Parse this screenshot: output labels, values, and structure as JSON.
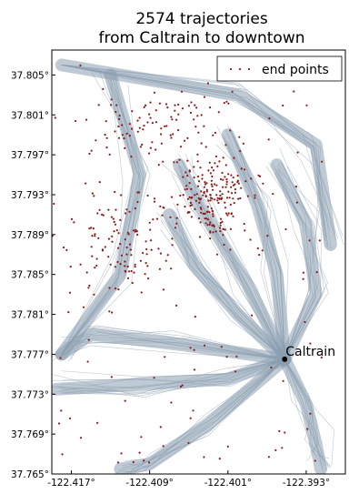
{
  "chart_data": {
    "type": "scatter",
    "title_lines": [
      "2574 trajectories",
      "from Caltrain to downtown"
    ],
    "xlabel": "",
    "ylabel": "",
    "xlim": [
      -122.419,
      -122.389
    ],
    "ylim": [
      37.765,
      37.8075
    ],
    "x_ticks": [
      -122.417,
      -122.409,
      -122.401,
      -122.393
    ],
    "x_tick_labels": [
      "-122.417°",
      "-122.409°",
      "-122.401°",
      "-122.393°"
    ],
    "y_ticks": [
      37.765,
      37.769,
      37.773,
      37.777,
      37.781,
      37.785,
      37.789,
      37.793,
      37.797,
      37.801,
      37.805
    ],
    "y_tick_labels": [
      "37.765°",
      "37.769°",
      "37.773°",
      "37.777°",
      "37.781°",
      "37.785°",
      "37.789°",
      "37.793°",
      "37.797°",
      "37.801°",
      "37.805°"
    ],
    "grid": false,
    "legend": {
      "position": "top-right",
      "entries": [
        {
          "label": "end points",
          "marker": "dot",
          "color": "#8b1a1a"
        }
      ]
    },
    "colors": {
      "trajectory": "#8a9eb0",
      "end_point": "#8b1a1a",
      "caltrain": "#000000"
    },
    "annotations": [
      {
        "text": "Caltrain",
        "x": -122.3952,
        "y": 37.7765
      }
    ],
    "end_points_shown": 2574,
    "trajectory_corridors": [
      [
        [
          -122.3952,
          37.7765
        ],
        [
          -122.4,
          37.781
        ],
        [
          -122.4045,
          37.786
        ],
        [
          -122.407,
          37.791
        ]
      ],
      [
        [
          -122.3952,
          37.7765
        ],
        [
          -122.399,
          37.784
        ],
        [
          -122.404,
          37.792
        ],
        [
          -122.406,
          37.796
        ]
      ],
      [
        [
          -122.3952,
          37.7765
        ],
        [
          -122.406,
          37.778
        ],
        [
          -122.415,
          37.779
        ],
        [
          -122.418,
          37.777
        ]
      ],
      [
        [
          -122.3952,
          37.7765
        ],
        [
          -122.401,
          37.7745
        ],
        [
          -122.41,
          37.774
        ],
        [
          -122.4185,
          37.7735
        ]
      ],
      [
        [
          -122.3952,
          37.7765
        ],
        [
          -122.396,
          37.785
        ],
        [
          -122.398,
          37.792
        ],
        [
          -122.401,
          37.799
        ]
      ],
      [
        [
          -122.3952,
          37.7765
        ],
        [
          -122.392,
          37.783
        ],
        [
          -122.393,
          37.79
        ],
        [
          -122.396,
          37.796
        ]
      ],
      [
        [
          -122.418,
          37.806
        ],
        [
          -122.4,
          37.803
        ],
        [
          -122.392,
          37.798
        ],
        [
          -122.3905,
          37.788
        ]
      ],
      [
        [
          -122.418,
          37.777
        ],
        [
          -122.412,
          37.785
        ],
        [
          -122.41,
          37.795
        ],
        [
          -122.413,
          37.805
        ]
      ],
      [
        [
          -122.3952,
          37.7765
        ],
        [
          -122.393,
          37.772
        ],
        [
          -122.392,
          37.768
        ],
        [
          -122.3915,
          37.7655
        ]
      ],
      [
        [
          -122.3952,
          37.7765
        ],
        [
          -122.403,
          37.77
        ],
        [
          -122.409,
          37.766
        ],
        [
          -122.412,
          37.7655
        ]
      ]
    ]
  }
}
